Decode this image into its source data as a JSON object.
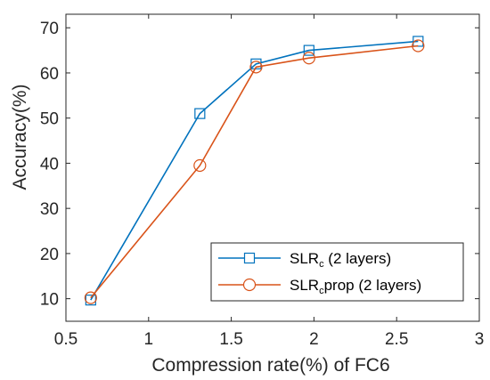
{
  "chart_data": {
    "type": "line",
    "xlabel": "Compression rate(%) of FC6",
    "ylabel": "Accuracy(%)",
    "xlim": [
      0.5,
      3
    ],
    "ylim": [
      5,
      73
    ],
    "xticks": [
      0.5,
      1,
      1.5,
      2,
      2.5,
      3
    ],
    "xtick_labels": [
      "0.5",
      "1",
      "1.5",
      "2",
      "2.5",
      "3"
    ],
    "yticks": [
      10,
      20,
      30,
      40,
      50,
      60,
      70
    ],
    "ytick_labels": [
      "10",
      "20",
      "30",
      "40",
      "50",
      "60",
      "70"
    ],
    "grid": false,
    "legend_position": "bottom-right",
    "series": [
      {
        "name": "SLR",
        "name_subscript": "c",
        "name_suffix": " (2 layers)",
        "color": "#0072BD",
        "marker": "square",
        "x": [
          0.65,
          1.31,
          1.65,
          1.97,
          2.63
        ],
        "y": [
          9.7,
          51.0,
          62.0,
          65.0,
          67.0
        ]
      },
      {
        "name": "SLR",
        "name_subscript": "c",
        "name_suffix": "prop (2 layers)",
        "color": "#D95319",
        "marker": "circle",
        "x": [
          0.65,
          1.31,
          1.65,
          1.97,
          2.63
        ],
        "y": [
          10.2,
          39.5,
          61.3,
          63.3,
          66.0
        ]
      }
    ]
  }
}
